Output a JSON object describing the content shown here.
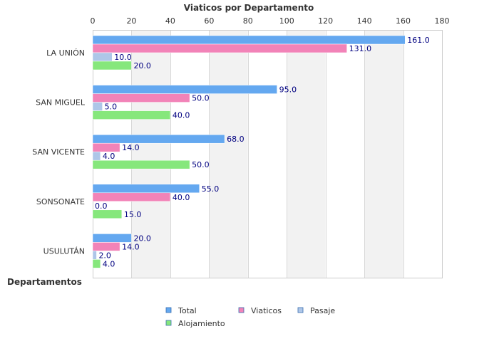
{
  "chart_data": {
    "type": "bar",
    "orientation": "horizontal",
    "title": "Viaticos por Departamento",
    "ylabel": "Departamentos",
    "xlabel": "",
    "xlim": [
      0,
      180
    ],
    "x_ticks": [
      0,
      20,
      40,
      60,
      80,
      100,
      120,
      140,
      160,
      180
    ],
    "x_axis_position": "top",
    "grid": true,
    "legend_position": "bottom",
    "categories": [
      "LA UNIÓN",
      "SAN MIGUEL",
      "SAN VICENTE",
      "SONSONATE",
      "USULUTÁN"
    ],
    "series": [
      {
        "name": "Total",
        "color": "#64a8f0",
        "values": [
          161.0,
          95.0,
          68.0,
          55.0,
          20.0
        ],
        "labels": [
          "161.0",
          "95.0",
          "68.0",
          "55.0",
          "20.0"
        ]
      },
      {
        "name": "Viaticos",
        "color": "#f283b8",
        "values": [
          131.0,
          50.0,
          14.0,
          40.0,
          14.0
        ],
        "labels": [
          "131.0",
          "50.0",
          "14.0",
          "40.0",
          "14.0"
        ]
      },
      {
        "name": "Pasaje",
        "color": "#aec6e8",
        "values": [
          10.0,
          5.0,
          4.0,
          0.0,
          2.0
        ],
        "labels": [
          "10.0",
          "5.0",
          "4.0",
          "0.0",
          "2.0"
        ]
      },
      {
        "name": "Alojamiento",
        "color": "#86e77c",
        "values": [
          20.0,
          40.0,
          50.0,
          15.0,
          4.0
        ],
        "labels": [
          "20.0",
          "40.0",
          "50.0",
          "15.0",
          "4.0"
        ]
      }
    ]
  }
}
